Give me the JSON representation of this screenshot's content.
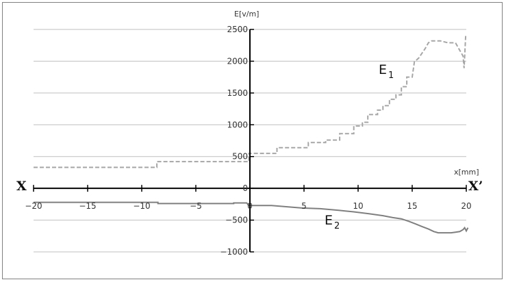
{
  "chart_data": {
    "type": "line",
    "ylabel": "E[v/m]",
    "xlabel": "x[mm]",
    "xlim": [
      -20,
      20
    ],
    "ylim": [
      -1000,
      2500
    ],
    "y_ticks": [
      2500,
      2000,
      1500,
      1000,
      500,
      0,
      -500,
      -1000
    ],
    "x_ticks": [
      -20,
      -15,
      -10,
      -5,
      0,
      5,
      10,
      15,
      20
    ],
    "y_tick_labels": [
      "2500",
      "2000",
      "1500",
      "1000",
      "500",
      "0",
      "−500",
      "−1000"
    ],
    "x_tick_labels": [
      "−20",
      "−15",
      "−10",
      "−5",
      "0",
      "5",
      "10",
      "15",
      "20"
    ],
    "x_end_labels": {
      "left": "X",
      "right": "X’"
    },
    "grid": true,
    "series": [
      {
        "name": "E",
        "name_sub": "1",
        "color": "#a6a6a6",
        "dash": true,
        "x": [
          -20,
          -8.6,
          -8.6,
          -0.1,
          -0.1,
          2.5,
          2.5,
          5.4,
          5.4,
          7.0,
          7.0,
          8.3,
          8.3,
          9.6,
          9.6,
          10.4,
          10.4,
          10.9,
          10.9,
          11.8,
          11.8,
          12.3,
          12.3,
          12.9,
          12.9,
          13.5,
          13.5,
          14.0,
          14.0,
          14.5,
          14.5,
          15.0,
          15.2,
          15.6,
          16.2,
          16.5,
          16.8,
          17.6,
          18.3,
          19.0,
          19.4,
          19.7,
          19.8,
          19.95
        ],
        "y": [
          330,
          330,
          420,
          420,
          550,
          550,
          640,
          640,
          720,
          720,
          760,
          760,
          860,
          860,
          980,
          980,
          1040,
          1040,
          1160,
          1160,
          1230,
          1230,
          1300,
          1300,
          1400,
          1400,
          1470,
          1470,
          1600,
          1600,
          1750,
          1750,
          1990,
          2050,
          2200,
          2290,
          2320,
          2320,
          2290,
          2290,
          2170,
          2080,
          1890,
          2420
        ]
      },
      {
        "name": "E",
        "name_sub": "2",
        "color": "#7f7f7f",
        "dash": false,
        "x": [
          -20,
          -8.5,
          -8.5,
          -1.5,
          -1.5,
          -0.3,
          -0.1,
          0,
          2.0,
          4.8,
          6.5,
          8.2,
          9.6,
          11.0,
          12.3,
          13.2,
          14.0,
          14.7,
          15.3,
          15.9,
          16.5,
          17.0,
          17.4,
          18.0,
          18.6,
          19.0,
          19.4,
          19.7,
          19.85,
          20.0,
          20.15
        ],
        "y": [
          -220,
          -220,
          -240,
          -240,
          -230,
          -230,
          -270,
          -270,
          -270,
          -310,
          -320,
          -345,
          -370,
          -400,
          -430,
          -460,
          -480,
          -520,
          -560,
          -600,
          -640,
          -680,
          -700,
          -700,
          -700,
          -690,
          -680,
          -650,
          -620,
          -670,
          -620
        ]
      }
    ]
  }
}
